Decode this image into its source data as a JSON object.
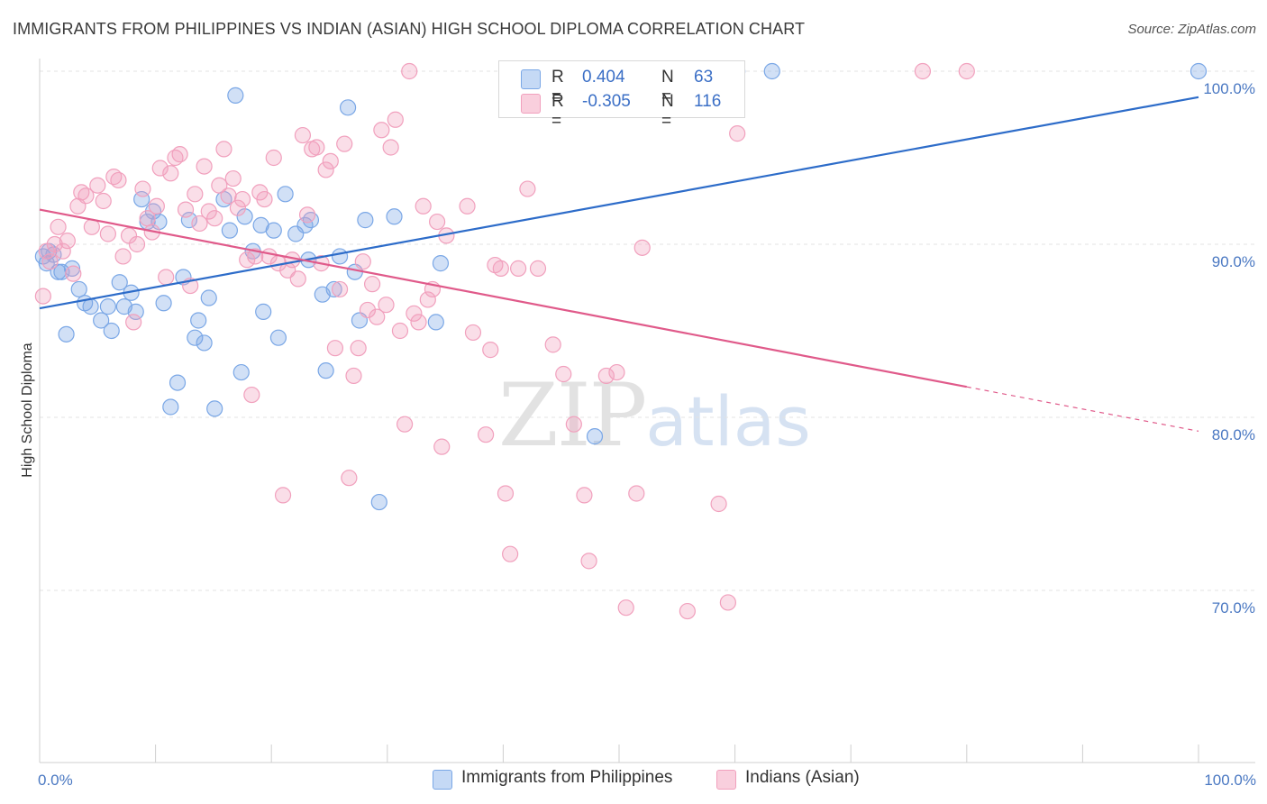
{
  "header": {
    "title": "IMMIGRANTS FROM PHILIPPINES VS INDIAN (ASIAN) HIGH SCHOOL DIPLOMA CORRELATION CHART",
    "source": "Source: ZipAtlas.com"
  },
  "watermark": {
    "zip": "ZIP",
    "atlas": "atlas"
  },
  "legend": {
    "rows": [
      {
        "r_label": "R =",
        "r_value": "0.404",
        "n_label": "N =",
        "n_value": "63",
        "color": "#7aa7e6"
      },
      {
        "r_label": "R =",
        "r_value": "-0.305",
        "n_label": "N =",
        "n_value": "116",
        "color": "#f1a0bd"
      }
    ]
  },
  "bottom_legend": {
    "items": [
      {
        "label": "Immigrants from Philippines",
        "color": "#7aa7e6"
      },
      {
        "label": "Indians (Asian)",
        "color": "#f1a0bd"
      }
    ]
  },
  "chart_data": {
    "type": "scatter",
    "ylabel": "High School Diploma",
    "xlim": [
      0,
      100
    ],
    "ylim": [
      59,
      101
    ],
    "x_tick_labels": [
      {
        "value": 0,
        "label": "0.0%"
      },
      {
        "value": 100,
        "label": "100.0%"
      }
    ],
    "y_tick_labels": [
      {
        "value": 100,
        "label": "100.0%"
      },
      {
        "value": 90,
        "label": "90.0%"
      },
      {
        "value": 80,
        "label": "80.0%"
      },
      {
        "value": 70,
        "label": "70.0%"
      }
    ],
    "grid": true,
    "series": [
      {
        "name": "Immigrants from Philippines",
        "color": "#7aa7e6",
        "line_color": "#2d6cc9",
        "trend": {
          "x": [
            0,
            100
          ],
          "y": [
            86.3,
            98.5
          ],
          "dashed_from": null
        },
        "points": [
          [
            0.3,
            89.3
          ],
          [
            0.6,
            88.9
          ],
          [
            0.8,
            89.6
          ],
          [
            1.2,
            89.4
          ],
          [
            1.6,
            88.4
          ],
          [
            1.9,
            88.4
          ],
          [
            2.3,
            84.8
          ],
          [
            2.8,
            88.6
          ],
          [
            3.4,
            87.4
          ],
          [
            3.9,
            86.6
          ],
          [
            4.4,
            86.4
          ],
          [
            5.3,
            85.6
          ],
          [
            5.9,
            86.4
          ],
          [
            6.2,
            85.0
          ],
          [
            6.9,
            87.8
          ],
          [
            7.3,
            86.4
          ],
          [
            7.9,
            87.2
          ],
          [
            8.3,
            86.1
          ],
          [
            8.8,
            92.6
          ],
          [
            9.3,
            91.3
          ],
          [
            9.8,
            91.9
          ],
          [
            10.3,
            91.3
          ],
          [
            10.7,
            86.6
          ],
          [
            11.3,
            80.6
          ],
          [
            11.9,
            82.0
          ],
          [
            12.4,
            88.1
          ],
          [
            12.9,
            91.4
          ],
          [
            13.4,
            84.6
          ],
          [
            13.7,
            85.6
          ],
          [
            14.2,
            84.3
          ],
          [
            14.6,
            86.9
          ],
          [
            15.1,
            80.5
          ],
          [
            15.9,
            92.6
          ],
          [
            16.4,
            90.8
          ],
          [
            16.9,
            98.6
          ],
          [
            17.4,
            82.6
          ],
          [
            17.7,
            91.6
          ],
          [
            18.4,
            89.6
          ],
          [
            19.1,
            91.1
          ],
          [
            19.3,
            86.1
          ],
          [
            20.2,
            90.8
          ],
          [
            20.6,
            84.6
          ],
          [
            21.2,
            92.9
          ],
          [
            22.1,
            90.6
          ],
          [
            22.9,
            91.1
          ],
          [
            23.2,
            89.1
          ],
          [
            23.4,
            91.4
          ],
          [
            24.4,
            87.1
          ],
          [
            24.7,
            82.7
          ],
          [
            25.4,
            87.4
          ],
          [
            25.9,
            89.3
          ],
          [
            26.6,
            97.9
          ],
          [
            27.2,
            88.4
          ],
          [
            27.6,
            85.6
          ],
          [
            28.1,
            91.4
          ],
          [
            29.3,
            75.1
          ],
          [
            30.6,
            91.6
          ],
          [
            34.2,
            85.5
          ],
          [
            34.6,
            88.9
          ],
          [
            47.9,
            78.9
          ],
          [
            60.2,
            100.0
          ],
          [
            63.2,
            100.0
          ],
          [
            100.0,
            100.0
          ]
        ]
      },
      {
        "name": "Indians (Asian)",
        "color": "#f1a0bd",
        "line_color": "#e05a8a",
        "trend": {
          "x": [
            0,
            100
          ],
          "y": [
            92.0,
            79.2
          ],
          "dashed_from": 80
        },
        "points": [
          [
            0.3,
            87.0
          ],
          [
            0.6,
            89.6
          ],
          [
            0.9,
            89.0
          ],
          [
            1.3,
            90.0
          ],
          [
            1.6,
            91.0
          ],
          [
            2.0,
            89.6
          ],
          [
            2.4,
            90.2
          ],
          [
            2.9,
            88.3
          ],
          [
            3.3,
            92.2
          ],
          [
            3.6,
            93.0
          ],
          [
            4.0,
            92.8
          ],
          [
            4.5,
            91.0
          ],
          [
            5.0,
            93.4
          ],
          [
            5.5,
            92.5
          ],
          [
            5.9,
            90.6
          ],
          [
            6.4,
            93.9
          ],
          [
            6.8,
            93.7
          ],
          [
            7.2,
            89.3
          ],
          [
            7.7,
            90.5
          ],
          [
            8.1,
            85.5
          ],
          [
            8.4,
            90.0
          ],
          [
            8.9,
            93.2
          ],
          [
            9.3,
            91.5
          ],
          [
            9.7,
            90.7
          ],
          [
            10.1,
            92.2
          ],
          [
            10.4,
            94.4
          ],
          [
            10.9,
            88.1
          ],
          [
            11.3,
            94.1
          ],
          [
            11.7,
            95.0
          ],
          [
            12.1,
            95.2
          ],
          [
            12.6,
            92.0
          ],
          [
            13.0,
            87.6
          ],
          [
            13.4,
            92.9
          ],
          [
            13.8,
            91.2
          ],
          [
            14.2,
            94.5
          ],
          [
            14.6,
            91.9
          ],
          [
            15.1,
            91.5
          ],
          [
            15.5,
            93.4
          ],
          [
            15.9,
            95.5
          ],
          [
            16.3,
            92.8
          ],
          [
            16.7,
            93.8
          ],
          [
            17.1,
            92.1
          ],
          [
            17.5,
            92.6
          ],
          [
            17.9,
            89.1
          ],
          [
            18.3,
            81.3
          ],
          [
            18.6,
            89.3
          ],
          [
            19.0,
            93.0
          ],
          [
            19.4,
            92.6
          ],
          [
            19.8,
            89.3
          ],
          [
            20.2,
            95.0
          ],
          [
            20.6,
            88.9
          ],
          [
            21.0,
            75.5
          ],
          [
            21.4,
            88.5
          ],
          [
            21.8,
            89.1
          ],
          [
            22.3,
            88.0
          ],
          [
            22.7,
            96.3
          ],
          [
            23.1,
            91.7
          ],
          [
            23.5,
            95.5
          ],
          [
            23.9,
            95.6
          ],
          [
            24.3,
            88.9
          ],
          [
            24.7,
            94.3
          ],
          [
            25.1,
            94.8
          ],
          [
            25.5,
            84.0
          ],
          [
            25.9,
            87.4
          ],
          [
            26.3,
            95.8
          ],
          [
            26.7,
            76.5
          ],
          [
            27.1,
            82.4
          ],
          [
            27.5,
            84.0
          ],
          [
            27.9,
            89.0
          ],
          [
            28.3,
            86.2
          ],
          [
            28.7,
            87.7
          ],
          [
            29.1,
            85.8
          ],
          [
            29.5,
            96.6
          ],
          [
            29.9,
            86.5
          ],
          [
            30.3,
            95.6
          ],
          [
            30.7,
            97.2
          ],
          [
            31.1,
            85.0
          ],
          [
            31.5,
            79.6
          ],
          [
            31.9,
            100.0
          ],
          [
            32.3,
            86.0
          ],
          [
            32.7,
            85.5
          ],
          [
            33.1,
            92.2
          ],
          [
            33.5,
            86.8
          ],
          [
            33.9,
            87.4
          ],
          [
            34.3,
            91.3
          ],
          [
            34.7,
            78.3
          ],
          [
            35.1,
            90.5
          ],
          [
            36.9,
            92.2
          ],
          [
            37.4,
            84.9
          ],
          [
            38.5,
            79.0
          ],
          [
            38.9,
            83.9
          ],
          [
            39.3,
            88.8
          ],
          [
            39.8,
            88.6
          ],
          [
            40.2,
            75.6
          ],
          [
            40.6,
            72.1
          ],
          [
            41.3,
            88.6
          ],
          [
            42.1,
            93.2
          ],
          [
            43.0,
            88.6
          ],
          [
            44.3,
            84.2
          ],
          [
            45.2,
            82.5
          ],
          [
            46.1,
            79.6
          ],
          [
            47.0,
            75.5
          ],
          [
            47.4,
            71.7
          ],
          [
            48.9,
            82.4
          ],
          [
            49.8,
            82.6
          ],
          [
            50.6,
            69.0
          ],
          [
            51.5,
            75.6
          ],
          [
            52.0,
            89.8
          ],
          [
            53.2,
            100.0
          ],
          [
            54.1,
            100.0
          ],
          [
            55.9,
            68.8
          ],
          [
            58.6,
            75.0
          ],
          [
            59.4,
            69.3
          ],
          [
            60.2,
            96.4
          ],
          [
            76.2,
            100.0
          ],
          [
            80.0,
            100.0
          ]
        ]
      }
    ]
  }
}
